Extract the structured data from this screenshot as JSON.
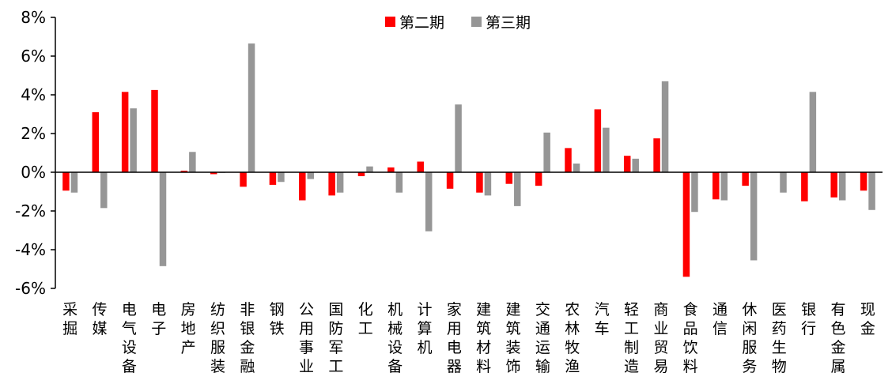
{
  "colors": {
    "series1": "#ff0000",
    "series2": "#969696",
    "axis": "#000000"
  },
  "chart_data": {
    "type": "bar",
    "legend_position": "top-center",
    "grid": false,
    "ylim": [
      -6,
      8
    ],
    "y_ticks": [
      -6,
      -4,
      -2,
      0,
      2,
      4,
      6,
      8
    ],
    "y_tick_labels": [
      "-6%",
      "-4%",
      "-2%",
      "0%",
      "2%",
      "4%",
      "6%",
      "8%"
    ],
    "categories": [
      "采掘",
      "传媒",
      "电气设备",
      "电子",
      "房地产",
      "纺织服装",
      "非银金融",
      "钢铁",
      "公用事业",
      "国防军工",
      "化工",
      "机械设备",
      "计算机",
      "家用电器",
      "建筑材料",
      "建筑装饰",
      "交通运输",
      "农林牧渔",
      "汽车",
      "轻工制造",
      "商业贸易",
      "食品饮料",
      "通信",
      "休闲服务",
      "医药生物",
      "银行",
      "有色金属",
      "现金"
    ],
    "series": [
      {
        "name": "第二期",
        "values": [
          -0.95,
          3.1,
          4.15,
          4.25,
          0.08,
          -0.1,
          -0.75,
          -0.65,
          -1.45,
          -1.2,
          -0.2,
          0.25,
          0.55,
          -0.85,
          -1.05,
          -0.6,
          -0.7,
          1.25,
          3.25,
          0.85,
          1.75,
          -5.4,
          -1.4,
          -0.7,
          0.0,
          -1.5,
          -1.3,
          -0.95
        ]
      },
      {
        "name": "第三期",
        "values": [
          -1.05,
          -1.85,
          3.3,
          -4.85,
          1.05,
          -0.02,
          6.65,
          -0.5,
          -0.35,
          -1.05,
          0.3,
          -1.05,
          -3.05,
          3.5,
          -1.2,
          -1.75,
          2.05,
          0.45,
          2.3,
          0.7,
          4.7,
          -2.05,
          -1.45,
          -4.55,
          -1.05,
          4.15,
          -1.45,
          -1.95
        ]
      }
    ]
  }
}
